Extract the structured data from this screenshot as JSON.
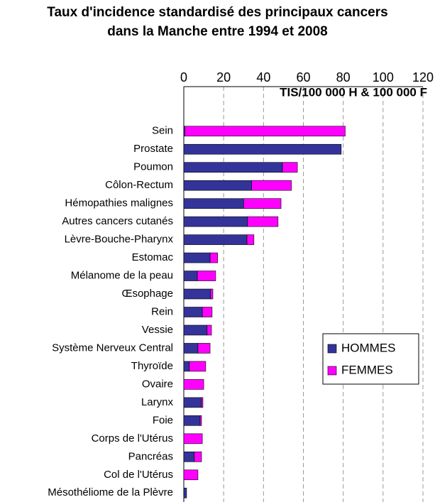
{
  "chart_data": {
    "type": "stacked-barh",
    "title": "Taux d'incidence standardisé des principaux cancers dans la Manche entre 1994 et 2008",
    "xlabel": "TIS/100 000 H & 100 000 F",
    "categories": [
      "Sein",
      "Prostate",
      "Poumon",
      "Côlon-Rectum",
      "Hémopathies malignes",
      "Autres cancers cutanés",
      "Lèvre-Bouche-Pharynx",
      "Estomac",
      "Mélanome de la peau",
      "Œsophage",
      "Rein",
      "Vessie",
      "Système Nerveux Central",
      "Thyroïde",
      "Ovaire",
      "Larynx",
      "Foie",
      "Corps de l'Utérus",
      "Pancréas",
      "Col de l'Utérus",
      "Mésothéliome de la Plèvre"
    ],
    "series": [
      {
        "name": "HOMMES",
        "color": "#333399",
        "values": [
          0.5,
          79,
          49.5,
          34,
          30,
          32,
          31.7,
          13.2,
          6.8,
          13.5,
          9.3,
          11.7,
          7.1,
          2.8,
          0,
          8.9,
          8.2,
          0,
          5.3,
          0,
          1.4
        ]
      },
      {
        "name": "FEMMES",
        "color": "#ff00ff",
        "values": [
          80.5,
          0,
          7.5,
          20,
          18.8,
          15.3,
          3.5,
          3.8,
          9.2,
          1.1,
          4.9,
          2.2,
          6.1,
          8.2,
          10,
          0.7,
          0.7,
          9.3,
          3.6,
          7.1,
          0
        ]
      }
    ],
    "xlim": [
      0,
      120
    ],
    "xticks": [
      0,
      20,
      40,
      60,
      80,
      100,
      120
    ],
    "grid": true,
    "legend": "right"
  }
}
